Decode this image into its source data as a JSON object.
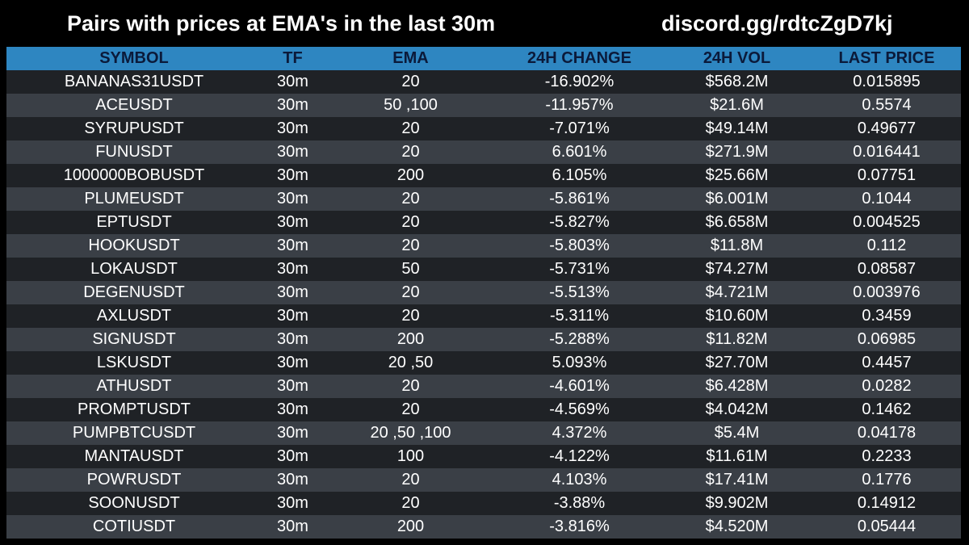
{
  "header": {
    "title": "Pairs with prices at EMA's in the last 30m",
    "discord": "discord.gg/rdtcZgD7kj"
  },
  "table": {
    "columns": [
      "SYMBOL",
      "TF",
      "EMA",
      "24H CHANGE",
      "24H VOL",
      "LAST PRICE"
    ],
    "rows": [
      [
        "BANANAS31USDT",
        "30m",
        "20",
        "-16.902%",
        "$568.2M",
        "0.015895"
      ],
      [
        "ACEUSDT",
        "30m",
        "50 ,100",
        "-11.957%",
        "$21.6M",
        "0.5574"
      ],
      [
        "SYRUPUSDT",
        "30m",
        "20",
        "-7.071%",
        "$49.14M",
        "0.49677"
      ],
      [
        "FUNUSDT",
        "30m",
        "20",
        "6.601%",
        "$271.9M",
        "0.016441"
      ],
      [
        "1000000BOBUSDT",
        "30m",
        "200",
        "6.105%",
        "$25.66M",
        "0.07751"
      ],
      [
        "PLUMEUSDT",
        "30m",
        "20",
        "-5.861%",
        "$6.001M",
        "0.1044"
      ],
      [
        "EPTUSDT",
        "30m",
        "20",
        "-5.827%",
        "$6.658M",
        "0.004525"
      ],
      [
        "HOOKUSDT",
        "30m",
        "20",
        "-5.803%",
        "$11.8M",
        "0.112"
      ],
      [
        "LOKAUSDT",
        "30m",
        "50",
        "-5.731%",
        "$74.27M",
        "0.08587"
      ],
      [
        "DEGENUSDT",
        "30m",
        "20",
        "-5.513%",
        "$4.721M",
        "0.003976"
      ],
      [
        "AXLUSDT",
        "30m",
        "20",
        "-5.311%",
        "$10.60M",
        "0.3459"
      ],
      [
        "SIGNUSDT",
        "30m",
        "200",
        "-5.288%",
        "$11.82M",
        "0.06985"
      ],
      [
        "LSKUSDT",
        "30m",
        "20 ,50",
        "5.093%",
        "$27.70M",
        "0.4457"
      ],
      [
        "ATHUSDT",
        "30m",
        "20",
        "-4.601%",
        "$6.428M",
        "0.0282"
      ],
      [
        "PROMPTUSDT",
        "30m",
        "20",
        "-4.569%",
        "$4.042M",
        "0.1462"
      ],
      [
        "PUMPBTCUSDT",
        "30m",
        "20 ,50 ,100",
        "4.372%",
        "$5.4M",
        "0.04178"
      ],
      [
        "MANTAUSDT",
        "30m",
        "100",
        "-4.122%",
        "$11.61M",
        "0.2233"
      ],
      [
        "POWRUSDT",
        "30m",
        "20",
        "4.103%",
        "$17.41M",
        "0.1776"
      ],
      [
        "SOONUSDT",
        "30m",
        "20",
        "-3.88%",
        "$9.902M",
        "0.14912"
      ],
      [
        "COTIUSDT",
        "30m",
        "200",
        "-3.816%",
        "$4.520M",
        "0.05444"
      ]
    ]
  }
}
